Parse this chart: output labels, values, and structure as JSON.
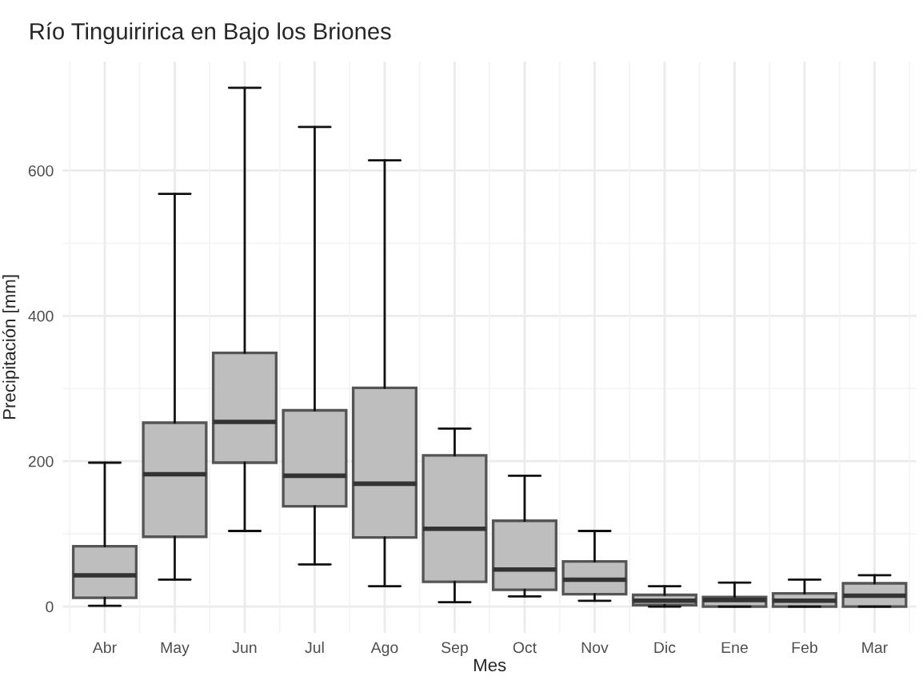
{
  "chart_data": {
    "type": "box",
    "title": "Río Tinguiririca en Bajo los Briones",
    "xlabel": "Mes",
    "ylabel": "Precipitación [mm]",
    "categories": [
      "Abr",
      "May",
      "Jun",
      "Jul",
      "Ago",
      "Sep",
      "Oct",
      "Nov",
      "Dic",
      "Ene",
      "Feb",
      "Mar"
    ],
    "boxes": [
      {
        "low": 1,
        "q1": 12,
        "median": 43,
        "q3": 83,
        "high": 198
      },
      {
        "low": 37,
        "q1": 96,
        "median": 182,
        "q3": 253,
        "high": 568
      },
      {
        "low": 104,
        "q1": 198,
        "median": 254,
        "q3": 349,
        "high": 714
      },
      {
        "low": 58,
        "q1": 138,
        "median": 180,
        "q3": 270,
        "high": 660
      },
      {
        "low": 28,
        "q1": 95,
        "median": 169,
        "q3": 301,
        "high": 614
      },
      {
        "low": 6,
        "q1": 34,
        "median": 107,
        "q3": 208,
        "high": 245
      },
      {
        "low": 14,
        "q1": 23,
        "median": 51,
        "q3": 118,
        "high": 180
      },
      {
        "low": 8,
        "q1": 17,
        "median": 37,
        "q3": 62,
        "high": 104
      },
      {
        "low": 0,
        "q1": 2,
        "median": 8,
        "q3": 16,
        "high": 28
      },
      {
        "low": 0,
        "q1": 0,
        "median": 9,
        "q3": 13,
        "high": 33
      },
      {
        "low": 0,
        "q1": 0,
        "median": 8,
        "q3": 18,
        "high": 37
      },
      {
        "low": 0,
        "q1": 0,
        "median": 15,
        "q3": 32,
        "high": 43
      }
    ],
    "color": "#bebebe",
    "ylim": [
      -36,
      750
    ],
    "yticks": [
      0,
      200,
      400,
      600
    ],
    "grid": true
  }
}
